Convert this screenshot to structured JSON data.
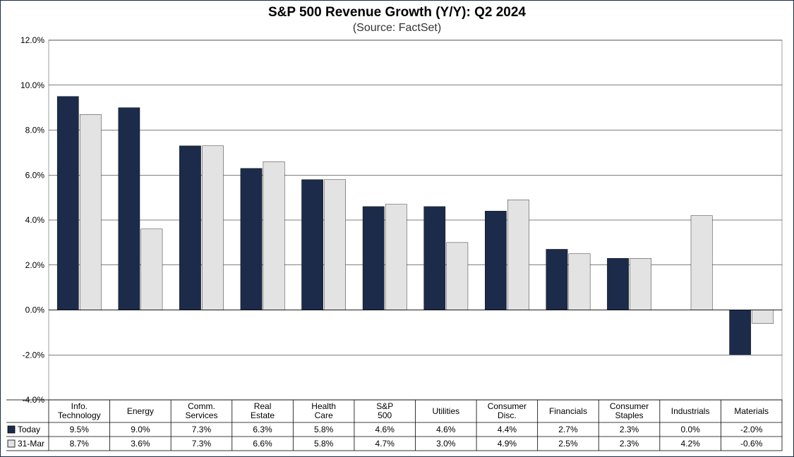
{
  "title": "S&P 500 Revenue Growth (Y/Y):  Q2 2024",
  "subtitle": "(Source: FactSet)",
  "chart": {
    "type": "bar",
    "categories": [
      "Info. Technology",
      "Energy",
      "Comm. Services",
      "Real Estate",
      "Health Care",
      "S&P 500",
      "Utilities",
      "Consumer Disc.",
      "Financials",
      "Consumer Staples",
      "Industrials",
      "Materials"
    ],
    "series": [
      {
        "name": "Today",
        "color": "#1c2b4a",
        "values": [
          9.5,
          9.0,
          7.3,
          6.3,
          5.8,
          4.6,
          4.6,
          4.4,
          2.7,
          2.3,
          0.0,
          -2.0
        ]
      },
      {
        "name": "31-Mar",
        "color": "#e3e3e3",
        "values": [
          8.7,
          3.6,
          7.3,
          6.6,
          5.8,
          4.7,
          3.0,
          4.9,
          2.5,
          2.3,
          4.2,
          -0.6
        ]
      }
    ],
    "y_axis": {
      "min": -4.0,
      "max": 12.0,
      "step": 2.0,
      "format_suffix": "%",
      "decimals": 1
    },
    "colors": {
      "grid": "#000000",
      "background": "#ffffff",
      "border": "#888888"
    },
    "fonts": {
      "title_size": 19,
      "subtitle_size": 16,
      "axis_size": 12,
      "table_size": 12
    },
    "bar": {
      "group_width_ratio": 0.72,
      "bar_gap_ratio": 0.02
    }
  }
}
